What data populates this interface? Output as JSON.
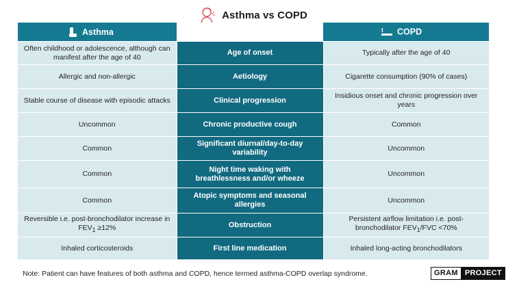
{
  "title": "Asthma vs COPD",
  "header": {
    "left": "Asthma",
    "right": "COPD",
    "left_icon": "inhaler-icon",
    "right_icon": "cigarette-icon",
    "title_icon": "person-coughing-icon"
  },
  "rows": [
    {
      "asthma": "Often childhood or adolescence, although can manifest after the age of 40",
      "feature": "Age of onset",
      "copd": "Typically after the age of 40"
    },
    {
      "asthma": "Allergic and non-allergic",
      "feature": "Aetiology",
      "copd": "Cigarette consumption (90% of cases)"
    },
    {
      "asthma": "Stable course of disease with episodic attacks",
      "feature": "Clinical progression",
      "copd": "Insidious onset and chronic progression over years"
    },
    {
      "asthma": "Uncommon",
      "feature": "Chronic productive cough",
      "copd": "Common"
    },
    {
      "asthma": "Common",
      "feature": "Significant diurnal/day-to-day variability",
      "copd": "Uncommon"
    },
    {
      "asthma": "Common",
      "feature": "Night time waking with breathlessness and/or wheeze",
      "copd": "Uncommon"
    },
    {
      "asthma": "Common",
      "feature": "Atopic symptoms and seasonal allergies",
      "copd": "Uncommon"
    },
    {
      "asthma_pre": "Reversible i.e. post-bronchodilator increase in FEV",
      "asthma_sub": "1",
      "asthma_post": " ≥12%",
      "feature": "Obstruction",
      "copd_pre": "Persistent airflow limitation i.e. post-bronchodilator FEV",
      "copd_sub": "1",
      "copd_post": "/FVC <70%"
    },
    {
      "asthma": "Inhaled corticosteroids",
      "feature": "First line medication",
      "copd": "Inhaled long-acting bronchodilators"
    }
  ],
  "note": "Note: Patient can have features of both asthma and COPD, hence termed asthma-COPD overlap syndrome.",
  "logo": {
    "part1": "GRAM",
    "part2": "PROJECT"
  },
  "colors": {
    "header": "#157a91",
    "middle": "#126a80",
    "side": "#d9eaef",
    "icon": "#e0566b"
  }
}
